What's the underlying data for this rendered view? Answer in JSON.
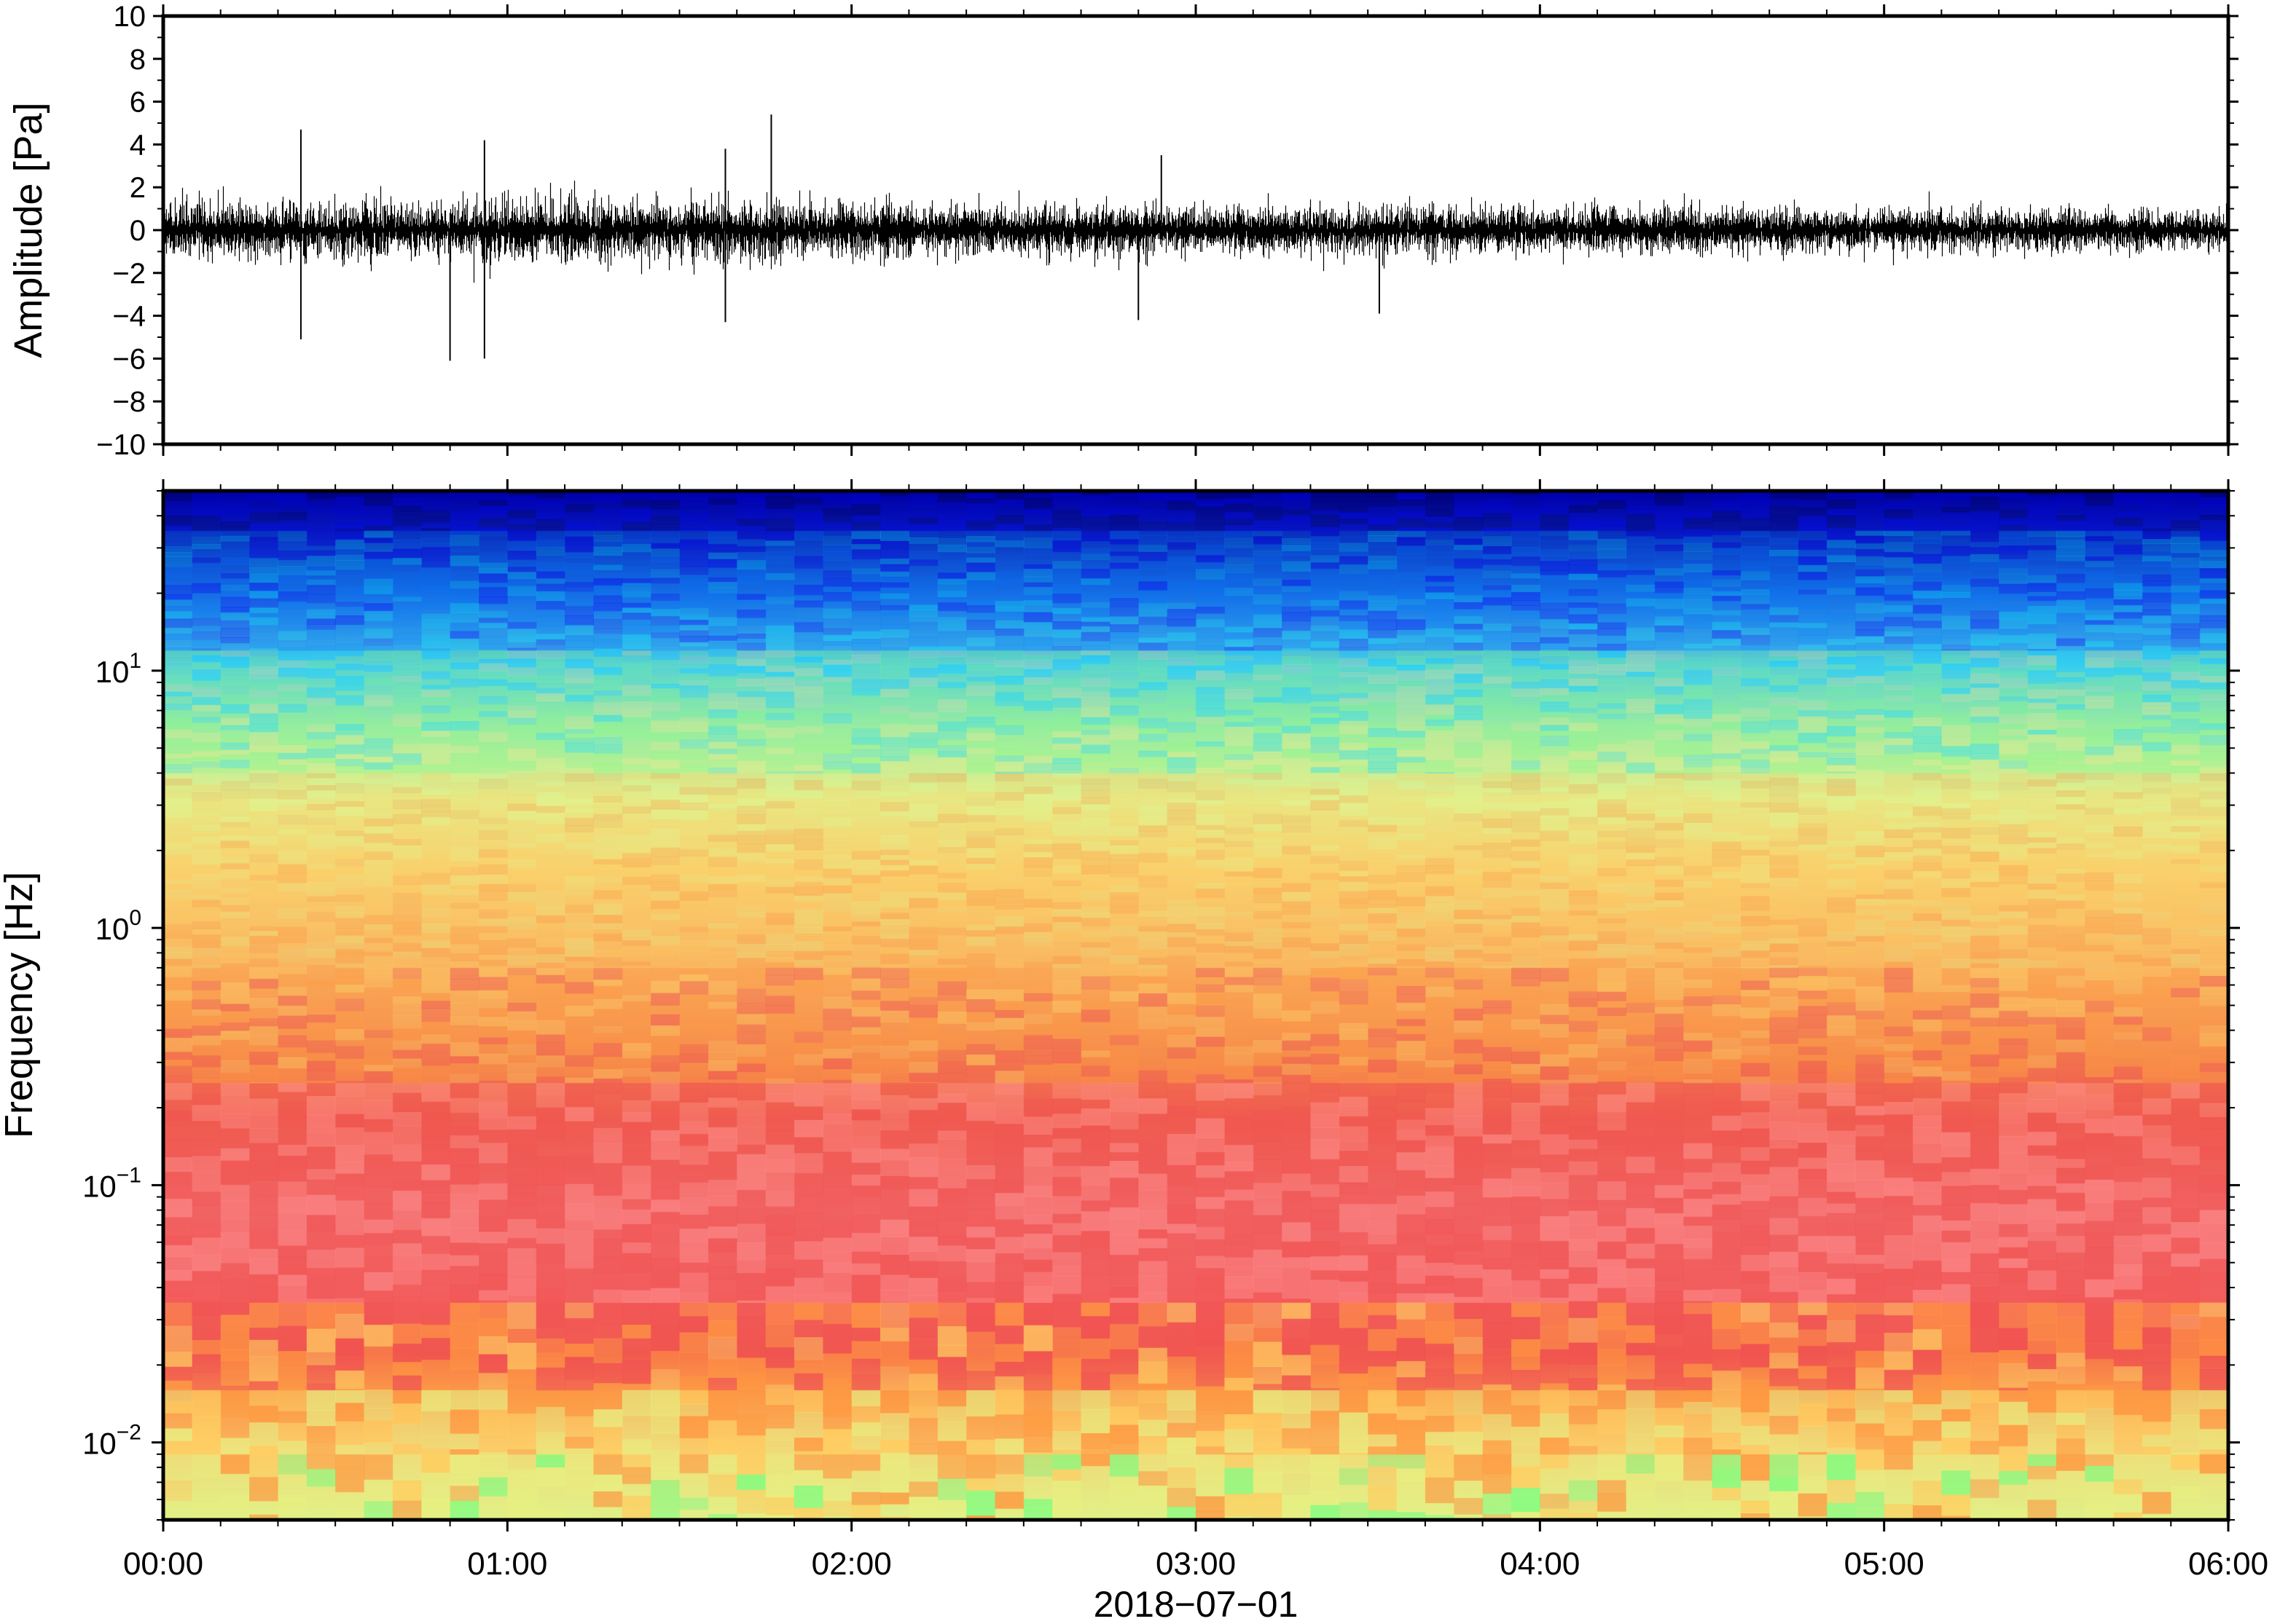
{
  "chart_data": [
    {
      "type": "line",
      "panel": "waveform",
      "ylabel": "Amplitude [Pa]",
      "ylim": [
        -10,
        10
      ],
      "yticks": [
        10,
        8,
        6,
        4,
        2,
        0,
        -2,
        -4,
        -6,
        -8,
        -10
      ],
      "ytick_labels": [
        "10",
        "8",
        "6",
        "4",
        "2",
        "0",
        "−2",
        "−4",
        "−6",
        "−8",
        "−10"
      ],
      "xlim": [
        "2018-07-01T00:00",
        "2018-07-01T06:00"
      ],
      "grid": false,
      "series": [
        {
          "color": "#000000",
          "typical_range": [
            -1.5,
            1.5
          ],
          "peaks": [
            {
              "x": "2018-07-01T00:24",
              "y": 4.7
            },
            {
              "x": "2018-07-01T00:24",
              "y": -5.1
            },
            {
              "x": "2018-07-01T00:50",
              "y": -6.1
            },
            {
              "x": "2018-07-01T00:56",
              "y": 4.2
            },
            {
              "x": "2018-07-01T00:56",
              "y": -6.0
            },
            {
              "x": "2018-07-01T01:38",
              "y": 3.8
            },
            {
              "x": "2018-07-01T01:38",
              "y": -4.3
            },
            {
              "x": "2018-07-01T01:46",
              "y": 5.4
            },
            {
              "x": "2018-07-01T02:54",
              "y": 3.5
            },
            {
              "x": "2018-07-01T02:50",
              "y": -4.2
            },
            {
              "x": "2018-07-01T03:32",
              "y": -3.9
            }
          ]
        }
      ]
    },
    {
      "type": "heatmap",
      "panel": "spectrogram",
      "ylabel": "Frequency [Hz]",
      "xlabel": "2018−07−01",
      "yscale": "log",
      "ylim": [
        0.005,
        50
      ],
      "yticks": [
        0.01,
        0.1,
        1,
        10
      ],
      "ytick_labels": [
        {
          "base": "10",
          "exp": "−2"
        },
        {
          "base": "10",
          "exp": "−1"
        },
        {
          "base": "10",
          "exp": "0"
        },
        {
          "base": "10",
          "exp": "1"
        }
      ],
      "xlim": [
        "2018-07-01T00:00",
        "2018-07-01T06:00"
      ],
      "xticks": [
        "2018-07-01T00:00",
        "2018-07-01T01:00",
        "2018-07-01T02:00",
        "2018-07-01T03:00",
        "2018-07-01T04:00",
        "2018-07-01T05:00",
        "2018-07-01T06:00"
      ],
      "xtick_labels": [
        "00:00",
        "01:00",
        "02:00",
        "03:00",
        "04:00",
        "05:00",
        "06:00"
      ],
      "colormap": [
        "#00007f",
        "#0000ff",
        "#007fff",
        "#00e0ff",
        "#7fff7f",
        "#e8f080",
        "#ffd060",
        "#ff9a40",
        "#f05050",
        "#ff9090"
      ],
      "dominant_colors_by_band": [
        {
          "freq_range_hz": [
            30,
            50
          ],
          "color": "#0a1aa0"
        },
        {
          "freq_range_hz": [
            10,
            30
          ],
          "color": "#2a8ce8"
        },
        {
          "freq_range_hz": [
            3,
            10
          ],
          "color": "#bfe890"
        },
        {
          "freq_range_hz": [
            0.4,
            3
          ],
          "color": "#f8b860"
        },
        {
          "freq_range_hz": [
            0.04,
            0.4
          ],
          "color": "#f05a5a"
        },
        {
          "freq_range_hz": [
            0.015,
            0.04
          ],
          "color": "#f89050"
        },
        {
          "freq_range_hz": [
            0.005,
            0.015
          ],
          "color": "#dff08a"
        }
      ]
    }
  ]
}
